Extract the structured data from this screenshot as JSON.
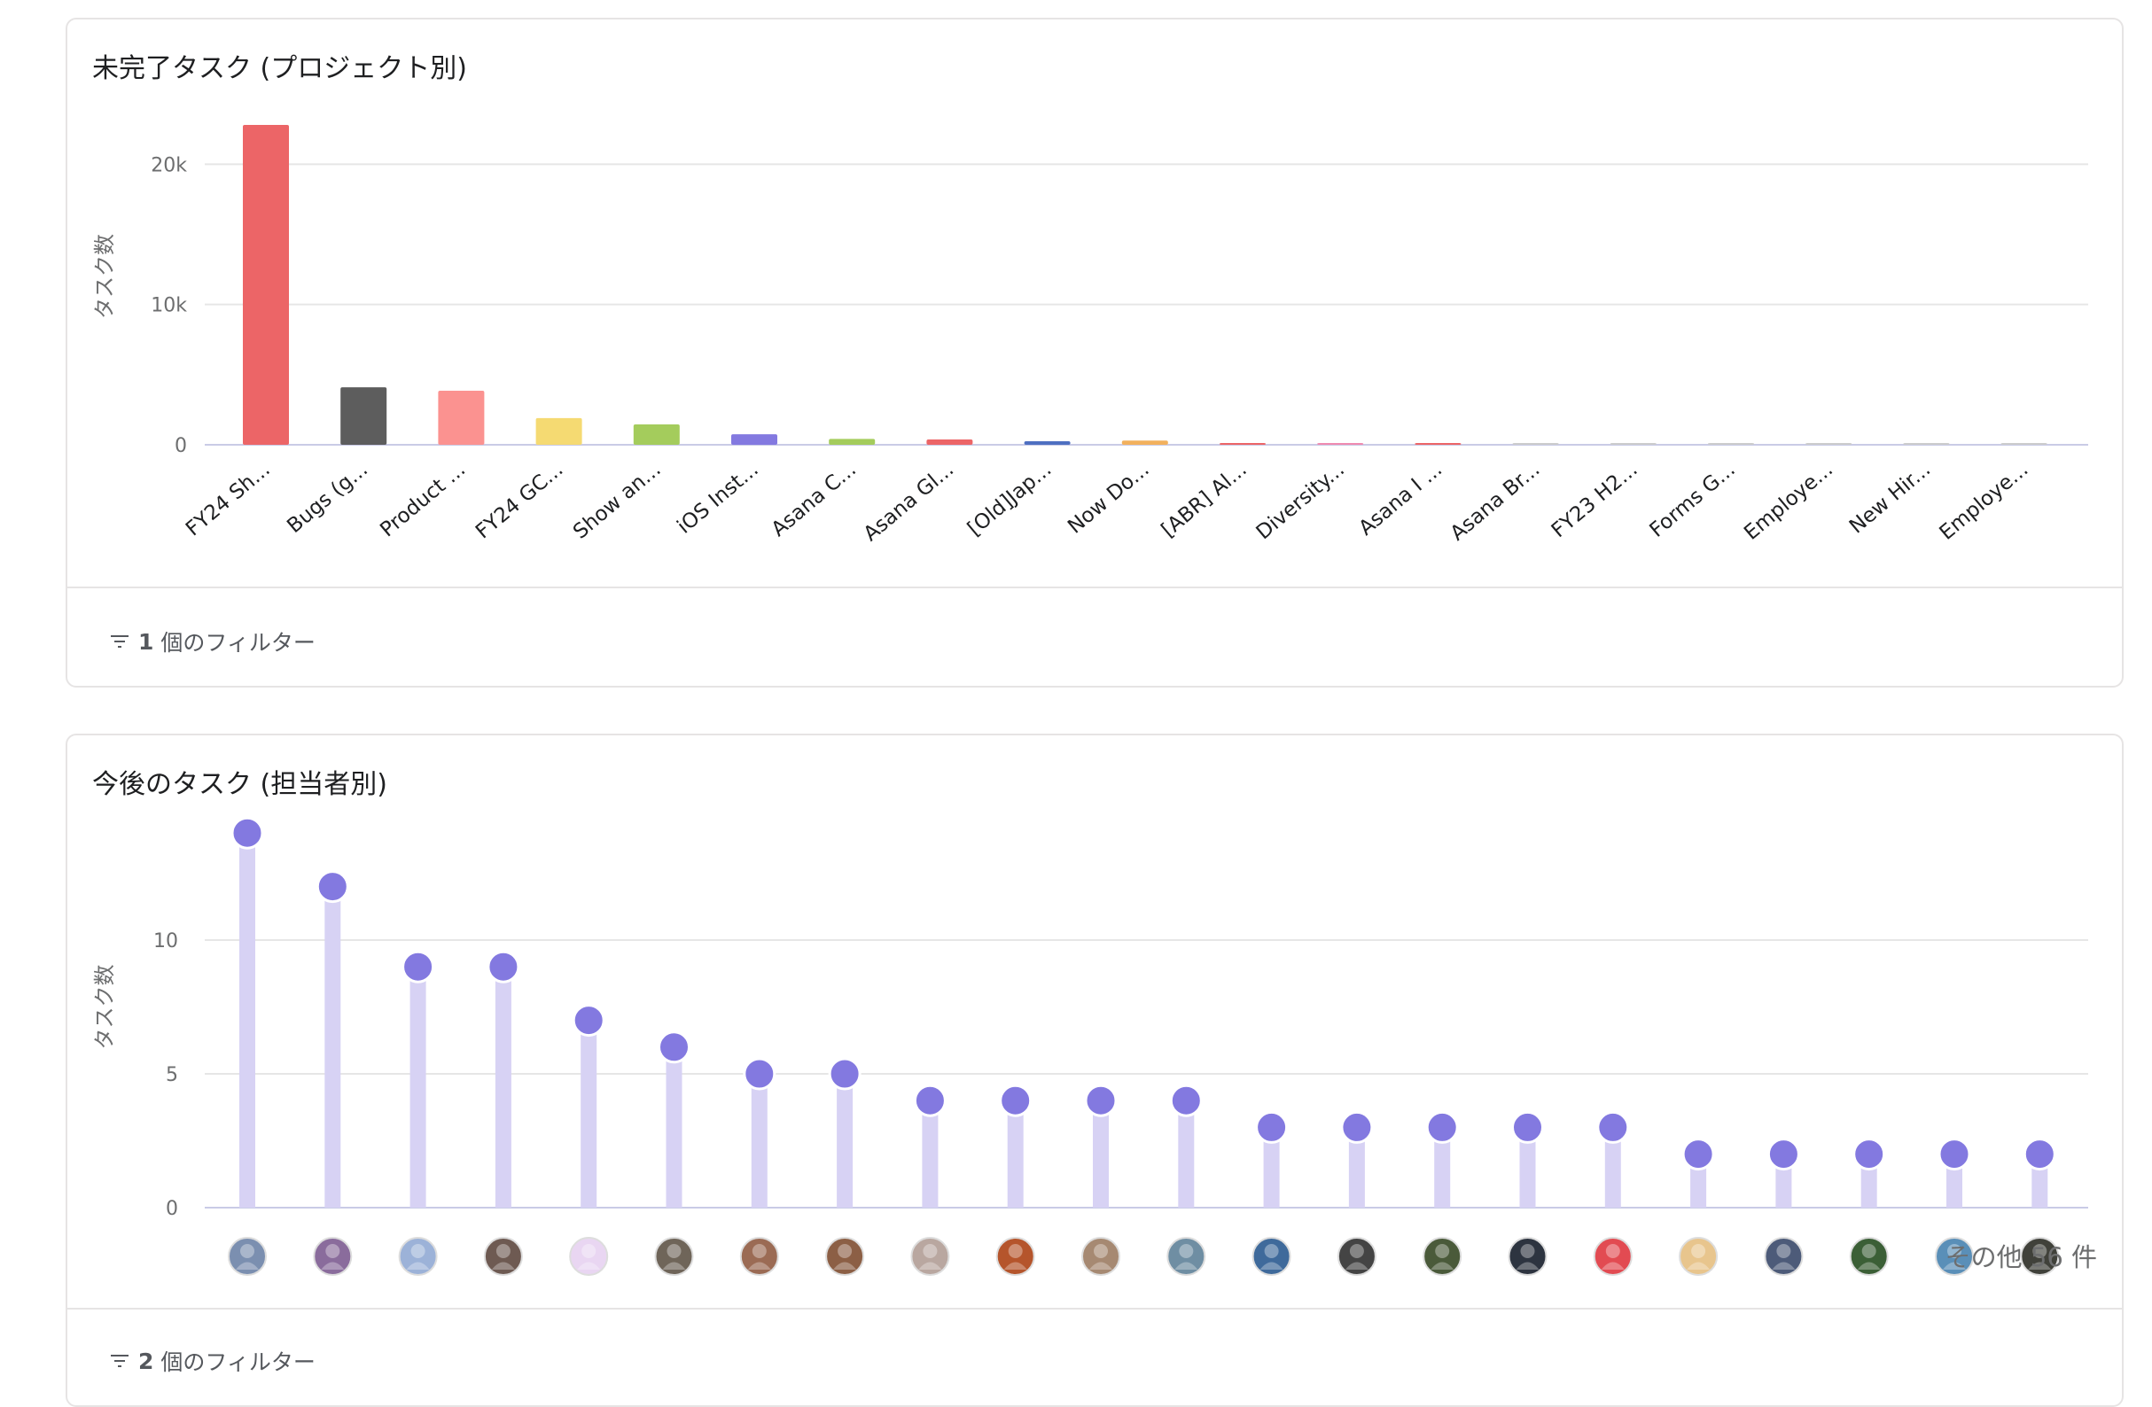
{
  "colors": {
    "grid": "#e6e6e6",
    "axis": "#c9cbe6",
    "lollipop_stem": "#d7d2f4",
    "lollipop_dot": "#8379e0",
    "text_muted": "#55585d"
  },
  "project_chart": {
    "title": "未完了タスク (プロジェクト別)",
    "footer_count": "1",
    "footer_label": "個のフィルター",
    "chart_data": {
      "type": "bar",
      "ylabel": "タスク数",
      "ylim": [
        0,
        24000
      ],
      "yticks": [
        {
          "value": 0,
          "label": "0"
        },
        {
          "value": 10000,
          "label": "10k"
        },
        {
          "value": 20000,
          "label": "20k"
        }
      ],
      "grid": true,
      "categories": [
        "FY24 Sh...",
        "Bugs (g...",
        "Product ...",
        "FY24 GC...",
        "Show an...",
        "iOS Inst...",
        "Asana C...",
        "Asana Gl...",
        "[Old]Jap...",
        "Now Do...",
        "[ABR] Al...",
        "Diversity...",
        "Asana I ...",
        "Asana Br...",
        "FY23 H2...",
        "Forms G...",
        "Employe...",
        "New Hir...",
        "Employe..."
      ],
      "values": [
        22800,
        4100,
        3850,
        1900,
        1450,
        750,
        420,
        380,
        250,
        300,
        120,
        120,
        110,
        40,
        30,
        25,
        20,
        15,
        10
      ],
      "colors": [
        "#ec6567",
        "#5d5d5d",
        "#fb9290",
        "#f5da72",
        "#a4cc5c",
        "#8379e0",
        "#a4cc5c",
        "#ec6567",
        "#4e6fc1",
        "#f2b15d",
        "#ec6567",
        "#f08bb0",
        "#ec6567",
        "#cccccc",
        "#cccccc",
        "#cccccc",
        "#cccccc",
        "#cccccc",
        "#cccccc"
      ]
    }
  },
  "assignee_chart": {
    "title": "今後のタスク (担当者別)",
    "footer_count": "2",
    "footer_label": "個のフィルター",
    "more_label": "その他 56 件",
    "chart_data": {
      "type": "scatter",
      "style": "lollipop",
      "ylabel": "タスク数",
      "ylim": [
        0,
        15
      ],
      "yticks": [
        {
          "value": 0,
          "label": "0"
        },
        {
          "value": 5,
          "label": "5"
        },
        {
          "value": 10,
          "label": "10"
        }
      ],
      "grid": true,
      "values": [
        14,
        12,
        9,
        9,
        7,
        6,
        5,
        5,
        4,
        4,
        4,
        4,
        3,
        3,
        3,
        3,
        3,
        2,
        2,
        2,
        2,
        2
      ],
      "avatar_colors": [
        "#7b8fb0",
        "#8a6c9c",
        "#9cb2d8",
        "#6e5a52",
        "#e9d6f2",
        "#6f6559",
        "#9b6b54",
        "#8c5f45",
        "#b9a7a0",
        "#b5552c",
        "#a68972",
        "#6f8ea3",
        "#3f6a9b",
        "#444444",
        "#4a5a3a",
        "#2d3440",
        "#e24b52",
        "#e8c58d",
        "#4d5b79",
        "#3b5f36",
        "#5a8fb8",
        "#40413a"
      ]
    }
  }
}
